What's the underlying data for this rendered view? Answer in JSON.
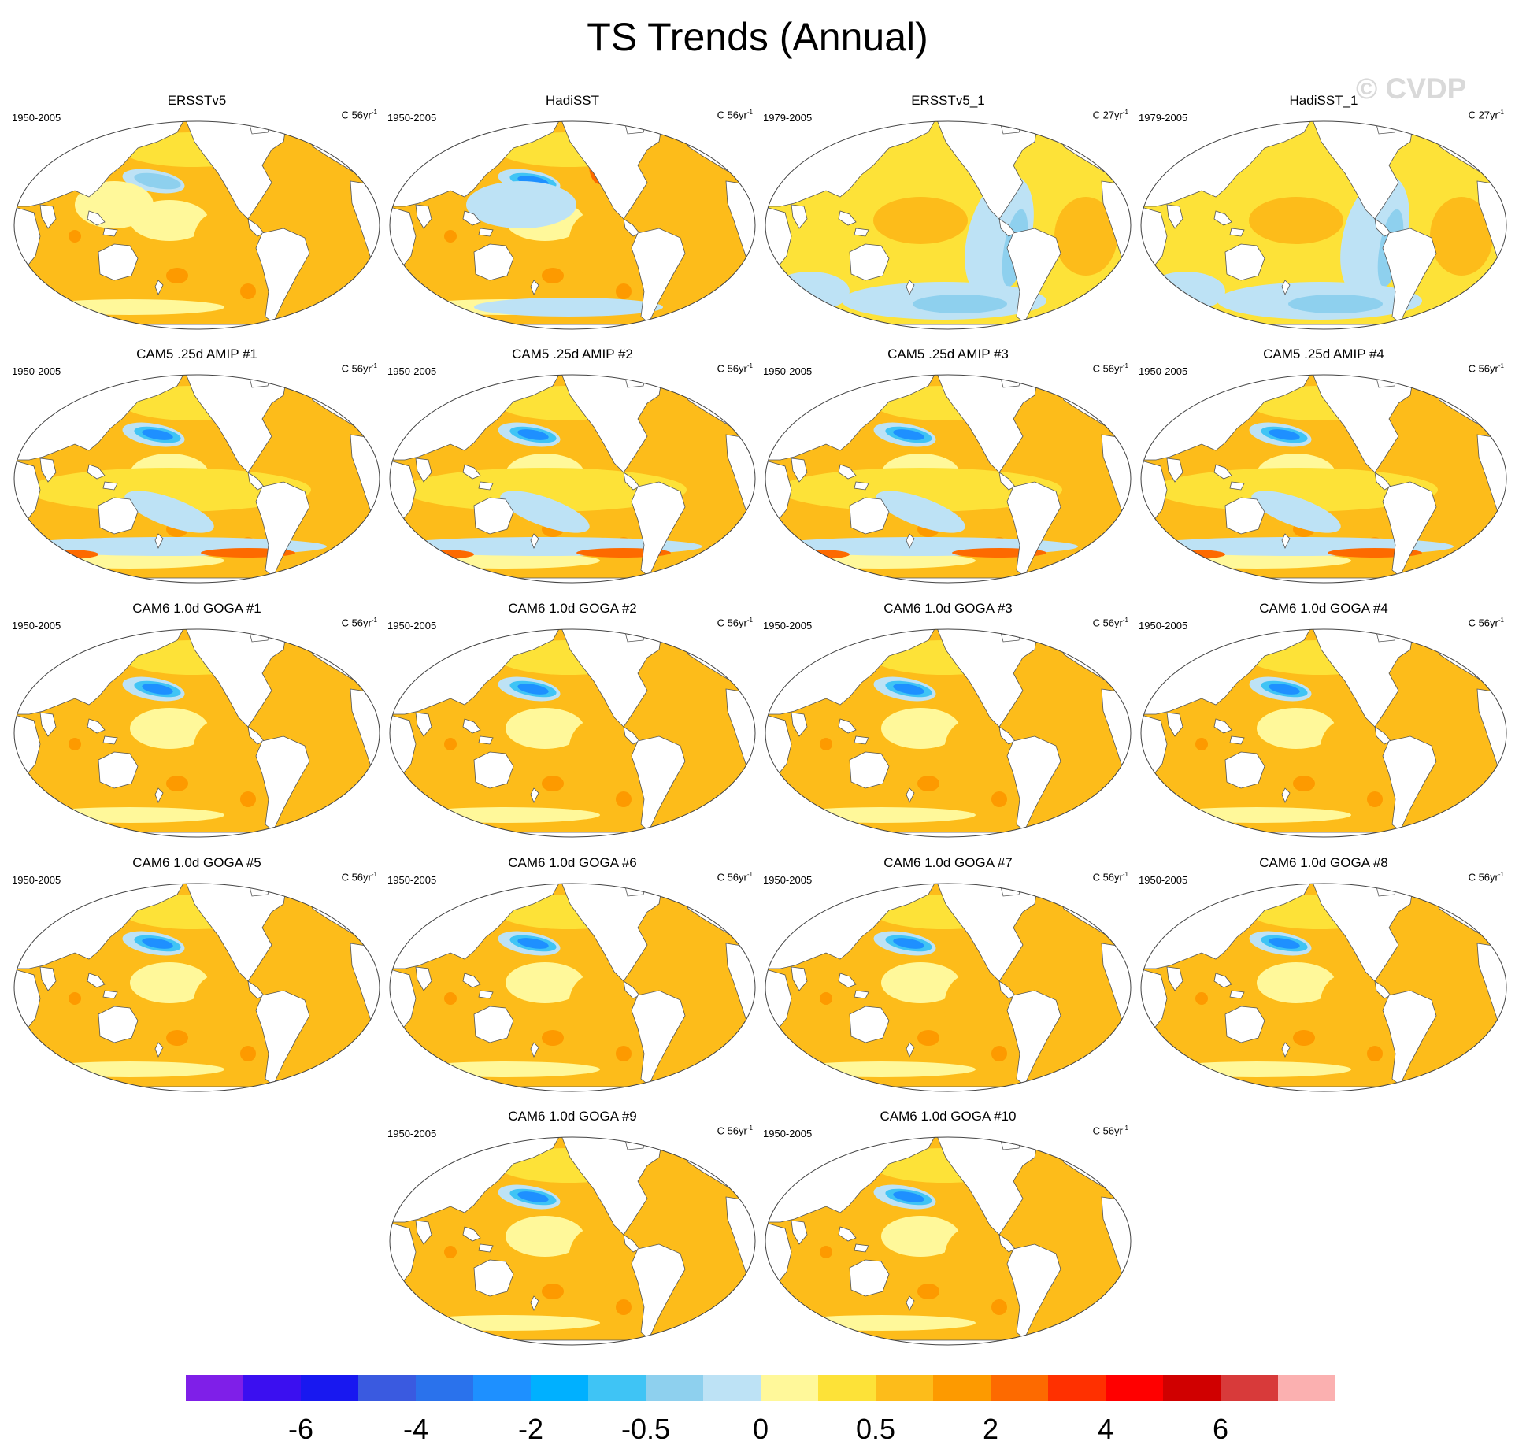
{
  "title": "TS Trends (Annual)",
  "watermark": "© CVDP",
  "panels": [
    {
      "name": "ERSSTv5",
      "years": "1950-2005",
      "units_prefix": "C 56yr",
      "units_exp": "-1",
      "style": "obs"
    },
    {
      "name": "HadiSST",
      "years": "1950-2005",
      "units_prefix": "C 56yr",
      "units_exp": "-1",
      "style": "obs2"
    },
    {
      "name": "ERSSTv5_1",
      "years": "1979-2005",
      "units_prefix": "C 27yr",
      "units_exp": "-1",
      "style": "short"
    },
    {
      "name": "HadiSST_1",
      "years": "1979-2005",
      "units_prefix": "C 27yr",
      "units_exp": "-1",
      "style": "short"
    },
    {
      "name": "CAM5 .25d AMIP #1",
      "years": "1950-2005",
      "units_prefix": "C 56yr",
      "units_exp": "-1",
      "style": "amip"
    },
    {
      "name": "CAM5 .25d AMIP #2",
      "years": "1950-2005",
      "units_prefix": "C 56yr",
      "units_exp": "-1",
      "style": "amip"
    },
    {
      "name": "CAM5 .25d AMIP #3",
      "years": "1950-2005",
      "units_prefix": "C 56yr",
      "units_exp": "-1",
      "style": "amip"
    },
    {
      "name": "CAM5 .25d AMIP #4",
      "years": "1950-2005",
      "units_prefix": "C 56yr",
      "units_exp": "-1",
      "style": "amip"
    },
    {
      "name": "CAM6 1.0d GOGA #1",
      "years": "1950-2005",
      "units_prefix": "C 56yr",
      "units_exp": "-1",
      "style": "goga"
    },
    {
      "name": "CAM6 1.0d GOGA #2",
      "years": "1950-2005",
      "units_prefix": "C 56yr",
      "units_exp": "-1",
      "style": "goga"
    },
    {
      "name": "CAM6 1.0d GOGA #3",
      "years": "1950-2005",
      "units_prefix": "C 56yr",
      "units_exp": "-1",
      "style": "goga"
    },
    {
      "name": "CAM6 1.0d GOGA #4",
      "years": "1950-2005",
      "units_prefix": "C 56yr",
      "units_exp": "-1",
      "style": "goga"
    },
    {
      "name": "CAM6 1.0d GOGA #5",
      "years": "1950-2005",
      "units_prefix": "C 56yr",
      "units_exp": "-1",
      "style": "goga"
    },
    {
      "name": "CAM6 1.0d GOGA #6",
      "years": "1950-2005",
      "units_prefix": "C 56yr",
      "units_exp": "-1",
      "style": "goga"
    },
    {
      "name": "CAM6 1.0d GOGA #7",
      "years": "1950-2005",
      "units_prefix": "C 56yr",
      "units_exp": "-1",
      "style": "goga"
    },
    {
      "name": "CAM6 1.0d GOGA #8",
      "years": "1950-2005",
      "units_prefix": "C 56yr",
      "units_exp": "-1",
      "style": "goga"
    },
    {
      "name": "CAM6 1.0d GOGA #9",
      "years": "1950-2005",
      "units_prefix": "C 56yr",
      "units_exp": "-1",
      "style": "goga"
    },
    {
      "name": "CAM6 1.0d GOGA #10",
      "years": "1950-2005",
      "units_prefix": "C 56yr",
      "units_exp": "-1",
      "style": "goga"
    }
  ],
  "colorbar": {
    "colors": [
      "#7f1fe8",
      "#3b0ff0",
      "#1818f0",
      "#3a5ae0",
      "#2a72ec",
      "#1e90ff",
      "#00b0ff",
      "#3fc4f5",
      "#8ed0ee",
      "#bde2f5",
      "#fff89a",
      "#fde238",
      "#fdbc1a",
      "#fd9a00",
      "#fd6a00",
      "#ff3000",
      "#ff0000",
      "#d00000",
      "#d83a3a",
      "#fbb0b0"
    ],
    "labels": [
      "-6",
      "-4",
      "-2",
      "-0.5",
      "0",
      "0.5",
      "2",
      "4",
      "6"
    ],
    "label_box_index": [
      2,
      4,
      6,
      8,
      10,
      12,
      14,
      16,
      18
    ]
  }
}
